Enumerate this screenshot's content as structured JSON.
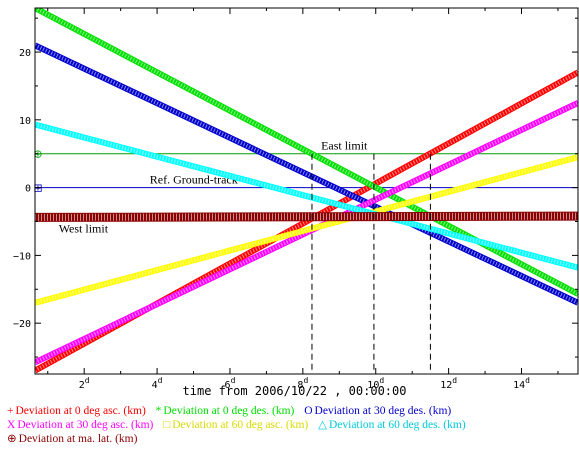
{
  "chart_data": {
    "type": "line",
    "xlabel": "time from 2006/10/22 , 00:00:00",
    "xlim": [
      0.65,
      15.55
    ],
    "ylim": [
      -27.5,
      26.5
    ],
    "x_ticks": [
      {
        "value": 2,
        "label": "2",
        "sup": "d"
      },
      {
        "value": 4,
        "label": "4",
        "sup": "d"
      },
      {
        "value": 6,
        "label": "6",
        "sup": "d"
      },
      {
        "value": 8,
        "label": "8",
        "sup": "d"
      },
      {
        "value": 10,
        "label": "10",
        "sup": "d"
      },
      {
        "value": 12,
        "label": "12",
        "sup": "d"
      },
      {
        "value": 14,
        "label": "14",
        "sup": "d"
      }
    ],
    "y_ticks": [
      {
        "value": 20,
        "label": "20"
      },
      {
        "value": 10,
        "label": "10"
      },
      {
        "value": 0,
        "label": "0"
      },
      {
        "value": -10,
        "label": "−10"
      },
      {
        "value": -20,
        "label": "−20"
      }
    ],
    "reference_lines": [
      {
        "label": "East limit",
        "y": 5,
        "color": "#00a000",
        "marker": "⊕",
        "label_x": 8.5
      },
      {
        "label": "Ref. Ground-track",
        "y": 0,
        "color": "#0000c8",
        "marker": "⊞",
        "label_x": 3.8
      },
      {
        "label": "West limit",
        "y": -4.4,
        "label_x": 1.3,
        "label_y": -7.2
      }
    ],
    "vertical_markers": [
      {
        "x": 8.25
      },
      {
        "x": 9.95
      },
      {
        "x": 11.5
      }
    ],
    "series": [
      {
        "name": "Deviation at 0 deg asc. (km)",
        "symbol": "+",
        "color": "#ff0000",
        "x": [
          0.65,
          15.55
        ],
        "y": [
          -27.0,
          17.0
        ]
      },
      {
        "name": "Deviation at 0 deg des. (km)",
        "symbol": "*",
        "color": "#00e000",
        "x": [
          0.65,
          15.55
        ],
        "y": [
          26.5,
          -15.7
        ]
      },
      {
        "name": "Deviation at 30 deg des. (km)",
        "symbol": "O",
        "color": "#0000cc",
        "x": [
          0.65,
          15.55
        ],
        "y": [
          21.0,
          -17.0
        ]
      },
      {
        "name": "Deviation at 30 deg asc. (km)",
        "symbol": "X",
        "color": "#ff00ff",
        "x": [
          0.65,
          15.55
        ],
        "y": [
          -25.8,
          12.5
        ]
      },
      {
        "name": "Deviation at 60 deg asc. (km)",
        "symbol": "□",
        "color": "#ffff00",
        "x": [
          0.65,
          15.55
        ],
        "y": [
          -17.0,
          4.5
        ]
      },
      {
        "name": "Deviation at 60 deg des. (km)",
        "symbol": "△",
        "color": "#00ffff",
        "x": [
          0.65,
          15.55
        ],
        "y": [
          9.3,
          -11.8
        ]
      },
      {
        "name": "Deviation at ma. lat. (km)",
        "symbol": "⊕",
        "color": "#8b0000",
        "x": [
          0.65,
          15.55
        ],
        "y": [
          -4.4,
          -4.2
        ]
      }
    ]
  }
}
